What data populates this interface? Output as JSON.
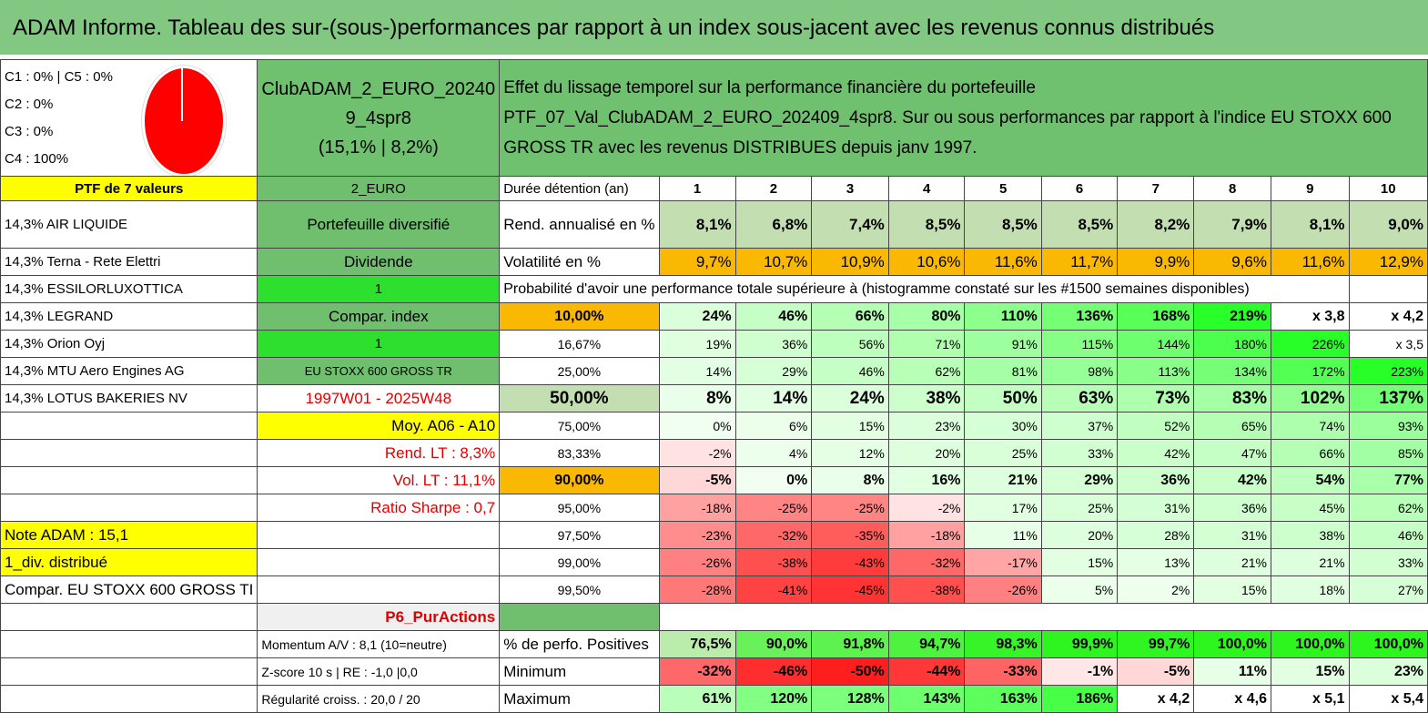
{
  "title": "ADAM Informe. Tableau des sur-(sous-)performances par rapport à un index sous-jacent avec les revenus connus distribués",
  "legend": [
    "C1 : 0% | C5 : 0%",
    "C2 : 0%",
    "C3 : 0%",
    "C4 : 100%"
  ],
  "fund": {
    "name_line1": "ClubADAM_2_EURO_20240",
    "name_line2": "9_4spr8",
    "perf": "(15,1% | 8,2%)"
  },
  "description": "Effet du lissage temporel sur la performance financière du portefeuille PTF_07_Val_ClubADAM_2_EURO_202409_4spr8. Sur ou sous performances par rapport à l'indice EU STOXX 600 GROSS TR avec les revenus DISTRIBUES depuis janv 1997.",
  "ptf_header": "PTF de 7 valeurs",
  "code": "2_EURO",
  "row_label_duree": "Durée détention (an)",
  "years": [
    "1",
    "2",
    "3",
    "4",
    "5",
    "6",
    "7",
    "8",
    "9",
    "10"
  ],
  "holdings": [
    "14,3% AIR LIQUIDE",
    "14,3% Terna - Rete Elettri",
    "14,3% ESSILORLUXOTTICA",
    "14,3% LEGRAND",
    "14,3% Orion Oyj",
    "14,3% MTU Aero Engines AG",
    "14,3% LOTUS BAKERIES NV"
  ],
  "info": {
    "portefeuille": "Portefeuille diversifié",
    "dividende": "Dividende",
    "one_a": "1",
    "compar_index": "Compar. index",
    "one_b": "1",
    "index_name": "EU STOXX 600 GROSS TR",
    "period": "1997W01 - 2025W48",
    "moy": "Moy. A06 - A10",
    "rend_lt": "Rend. LT : 8,3%",
    "vol_lt": "Vol. LT : 11,1%",
    "sharpe": "Ratio Sharpe : 0,7",
    "note": "Note ADAM : 15,1",
    "div": "1_div. distribué",
    "compar2": "Compar. EU STOXX 600 GROSS TI",
    "p6": "P6_PurActions",
    "momentum": "Momentum A/V : 8,1 (10=neutre)",
    "zscore": "Z-score 10 s | RE : -1,0 |0,0",
    "regularite": "Régularité croiss. : 20,0 / 20"
  },
  "rend": {
    "label": "Rend. annualisé en %",
    "values": [
      "8,1%",
      "6,8%",
      "7,4%",
      "8,5%",
      "8,5%",
      "8,5%",
      "8,2%",
      "7,9%",
      "8,1%",
      "9,0%"
    ]
  },
  "vol": {
    "label": "Volatilité en %",
    "values": [
      "9,7%",
      "10,7%",
      "10,9%",
      "10,6%",
      "11,6%",
      "11,7%",
      "9,9%",
      "9,6%",
      "11,6%",
      "12,9%"
    ]
  },
  "proba_title": "Probabilité d'avoir une performance totale supérieure à (histogramme constaté sur les #1500 semaines disponibles)",
  "proba": [
    {
      "p": "10,00%",
      "v": [
        "24%",
        "46%",
        "66%",
        "80%",
        "110%",
        "136%",
        "168%",
        "219%",
        "x 3,8",
        "x 4,2"
      ]
    },
    {
      "p": "16,67%",
      "v": [
        "19%",
        "36%",
        "56%",
        "71%",
        "91%",
        "115%",
        "144%",
        "180%",
        "226%",
        "x 3,5"
      ]
    },
    {
      "p": "25,00%",
      "v": [
        "14%",
        "29%",
        "46%",
        "62%",
        "81%",
        "98%",
        "113%",
        "134%",
        "172%",
        "223%"
      ]
    },
    {
      "p": "50,00%",
      "v": [
        "8%",
        "14%",
        "24%",
        "38%",
        "50%",
        "63%",
        "73%",
        "83%",
        "102%",
        "137%"
      ]
    },
    {
      "p": "75,00%",
      "v": [
        "0%",
        "6%",
        "15%",
        "23%",
        "30%",
        "37%",
        "52%",
        "65%",
        "74%",
        "93%"
      ]
    },
    {
      "p": "83,33%",
      "v": [
        "-2%",
        "4%",
        "12%",
        "20%",
        "25%",
        "33%",
        "42%",
        "47%",
        "66%",
        "85%"
      ]
    },
    {
      "p": "90,00%",
      "v": [
        "-5%",
        "0%",
        "8%",
        "16%",
        "21%",
        "29%",
        "36%",
        "42%",
        "54%",
        "77%"
      ]
    },
    {
      "p": "95,00%",
      "v": [
        "-18%",
        "-25%",
        "-25%",
        "-2%",
        "17%",
        "25%",
        "31%",
        "36%",
        "45%",
        "62%"
      ]
    },
    {
      "p": "97,50%",
      "v": [
        "-23%",
        "-32%",
        "-35%",
        "-18%",
        "11%",
        "20%",
        "28%",
        "31%",
        "38%",
        "46%"
      ]
    },
    {
      "p": "99,00%",
      "v": [
        "-26%",
        "-38%",
        "-43%",
        "-32%",
        "-17%",
        "15%",
        "13%",
        "21%",
        "21%",
        "33%"
      ]
    },
    {
      "p": "99,50%",
      "v": [
        "-28%",
        "-41%",
        "-45%",
        "-38%",
        "-26%",
        "5%",
        "2%",
        "15%",
        "18%",
        "27%"
      ]
    }
  ],
  "positives": {
    "label": "% de perfo. Positives",
    "values": [
      "76,5%",
      "90,0%",
      "91,8%",
      "94,7%",
      "98,3%",
      "99,9%",
      "99,7%",
      "100,0%",
      "100,0%",
      "100,0%"
    ]
  },
  "minimum": {
    "label": "Minimum",
    "values": [
      "-32%",
      "-46%",
      "-50%",
      "-44%",
      "-33%",
      "-1%",
      "-5%",
      "11%",
      "15%",
      "23%"
    ]
  },
  "maximum": {
    "label": "Maximum",
    "values": [
      "61%",
      "120%",
      "128%",
      "143%",
      "163%",
      "186%",
      "x 4,2",
      "x 4,6",
      "x 5,1",
      "x 5,4"
    ]
  }
}
